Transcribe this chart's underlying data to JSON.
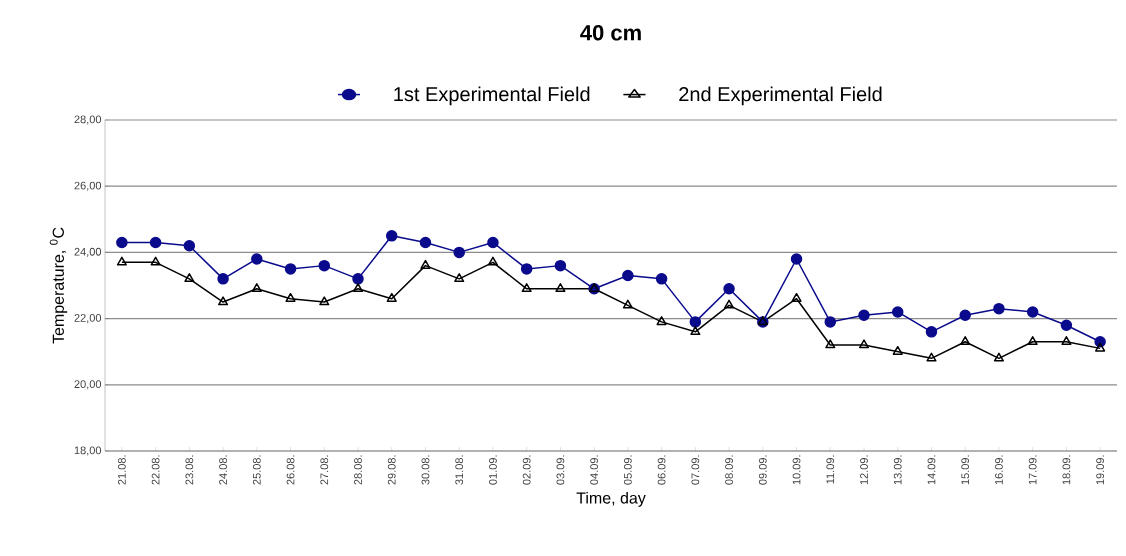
{
  "chart_data": {
    "type": "line",
    "title": "40 cm",
    "xlabel": "Time, day",
    "ylabel": "Temperature, $^{0}$C",
    "categories": [
      "21.08.",
      "22.08.",
      "23.08.",
      "24.08.",
      "25.08.",
      "26.08.",
      "27.08.",
      "28.08.",
      "29.08.",
      "30.08.",
      "31.08.",
      "01.09.",
      "02.09.",
      "03.09.",
      "04.09.",
      "05.09.",
      "06.09.",
      "07.09.",
      "08.09.",
      "09.09.",
      "10.09.",
      "11.09.",
      "12.09.",
      "13.09.",
      "14.09.",
      "15.09.",
      "16.09.",
      "17.09.",
      "18.09.",
      "19.09."
    ],
    "series": [
      {
        "name": "1st Experimental Field",
        "color": "#0a0a8c",
        "marker": "circle",
        "values": [
          24.3,
          24.3,
          24.2,
          23.2,
          23.8,
          23.5,
          23.6,
          23.2,
          24.5,
          24.3,
          24.0,
          24.3,
          23.5,
          23.6,
          22.9,
          23.3,
          23.2,
          21.9,
          22.9,
          21.9,
          23.8,
          21.9,
          22.1,
          22.2,
          21.6,
          22.1,
          22.3,
          22.2,
          21.8,
          21.3
        ]
      },
      {
        "name": "2nd Experimental Field",
        "color": "#000000",
        "marker": "triangle",
        "values": [
          23.7,
          23.7,
          23.2,
          22.5,
          22.9,
          22.6,
          22.5,
          22.9,
          22.6,
          23.6,
          23.2,
          23.7,
          22.9,
          22.9,
          22.9,
          22.4,
          21.9,
          21.6,
          22.4,
          21.9,
          22.6,
          21.2,
          21.2,
          21.0,
          20.8,
          21.3,
          20.8,
          21.3,
          21.3,
          21.1
        ]
      }
    ],
    "ylim": [
      18,
      28
    ],
    "yticks": [
      {
        "value": 18,
        "label": "18,00"
      },
      {
        "value": 20,
        "label": "20,00"
      },
      {
        "value": 22,
        "label": "22,00"
      },
      {
        "value": 24,
        "label": "24,00"
      },
      {
        "value": 26,
        "label": "26,00"
      },
      {
        "value": 28,
        "label": "28,00"
      }
    ],
    "grid": "y",
    "legend": "top",
    "line_style": "solid"
  }
}
